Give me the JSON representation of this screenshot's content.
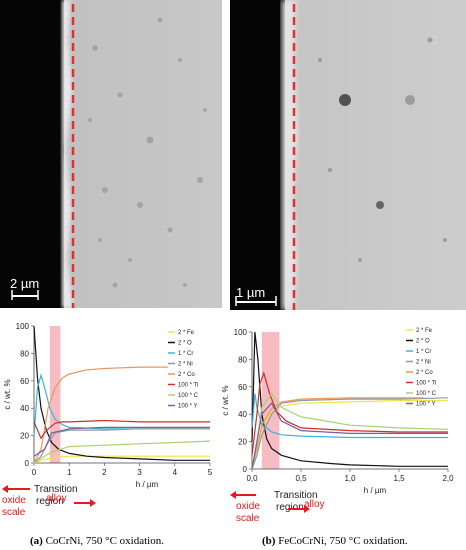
{
  "figure": {
    "panel_a": {
      "caption_letter": "(a)",
      "caption_text": "CoCrNi, 750 °C oxidation.",
      "scale_bar_label": "2 µm"
    },
    "panel_b": {
      "caption_letter": "(b)",
      "caption_text": "FeCoCrNi, 750 °C oxidation.",
      "scale_bar_label": "1 µm"
    }
  },
  "chart_data": [
    {
      "type": "line",
      "panel": "a",
      "ylabel": "c / wt. %",
      "xlabel": "h / µm",
      "xlim": [
        0,
        5
      ],
      "ylim": [
        0,
        100
      ],
      "x_ticks": [
        "0",
        "1",
        "2",
        "3",
        "4",
        "5"
      ],
      "y_ticks": [
        "0",
        "20",
        "40",
        "60",
        "80",
        "100"
      ],
      "grid": false,
      "legend_position": "top-right",
      "transition_region": [
        0.45,
        0.75
      ],
      "region_labels": [
        "oxide scale",
        "Transition region",
        "alloy"
      ],
      "series": [
        {
          "name": "2 * Fe",
          "color": "#f2e24a",
          "x": [
            0,
            0.2,
            0.4,
            0.6,
            1,
            1.5,
            2,
            3,
            4,
            5
          ],
          "y": [
            0,
            2,
            3,
            4,
            5,
            5,
            5,
            5,
            5,
            5
          ]
        },
        {
          "name": "2 * O",
          "color": "#111111",
          "x": [
            0,
            0.1,
            0.2,
            0.35,
            0.5,
            0.7,
            1,
            1.5,
            2,
            3,
            4,
            5
          ],
          "y": [
            100,
            62,
            40,
            24,
            15,
            10,
            7,
            5,
            4,
            3,
            2,
            2
          ]
        },
        {
          "name": "1 * Cr",
          "color": "#3ab4d8",
          "x": [
            0,
            0.1,
            0.2,
            0.3,
            0.45,
            0.6,
            0.8,
            1,
            2,
            3,
            4,
            5
          ],
          "y": [
            20,
            55,
            64,
            55,
            40,
            32,
            28,
            26,
            25,
            25,
            25,
            25
          ]
        },
        {
          "name": "2 * Ni",
          "color": "#8d9aa6",
          "x": [
            0,
            0.2,
            0.4,
            0.6,
            1,
            2,
            3,
            4,
            5
          ],
          "y": [
            0,
            5,
            15,
            22,
            24,
            24,
            25,
            25,
            25
          ]
        },
        {
          "name": "2 * Co",
          "color": "#e8965a",
          "x": [
            0,
            0.2,
            0.3,
            0.4,
            0.6,
            0.8,
            1,
            1.5,
            2,
            3,
            3.8
          ],
          "y": [
            0,
            10,
            25,
            40,
            55,
            62,
            65,
            68,
            69,
            70,
            70
          ]
        },
        {
          "name": "100 * Ti",
          "color": "#d42a2a",
          "x": [
            0,
            0.2,
            0.3,
            0.45,
            0.6,
            0.8,
            1,
            2,
            3,
            4,
            5
          ],
          "y": [
            30,
            18,
            22,
            26,
            29,
            30,
            30,
            31,
            30,
            30,
            30
          ]
        },
        {
          "name": "100 * C",
          "color": "#a8d26e",
          "x": [
            0,
            0.3,
            0.5,
            1,
            2,
            3,
            4,
            5
          ],
          "y": [
            0,
            5,
            8,
            12,
            13,
            14,
            15,
            16
          ]
        },
        {
          "name": "100 * Y",
          "color": "#7a5f9a",
          "x": [
            0,
            0.3,
            0.5,
            1,
            2,
            3,
            4,
            5
          ],
          "y": [
            5,
            10,
            22,
            25,
            26,
            26,
            26,
            26
          ]
        }
      ]
    },
    {
      "type": "line",
      "panel": "b",
      "ylabel": "c / wt. %",
      "xlabel": "h / µm",
      "xlim": [
        0,
        2
      ],
      "ylim": [
        0,
        100
      ],
      "x_ticks": [
        "0,0",
        "0,5",
        "1,0",
        "1,5",
        "2,0"
      ],
      "y_ticks": [
        "0",
        "20",
        "40",
        "60",
        "80",
        "100"
      ],
      "grid": false,
      "legend_position": "top-right",
      "transition_region": [
        0.1,
        0.28
      ],
      "region_labels": [
        "oxide scale",
        "Transition region",
        "alloy"
      ],
      "series": [
        {
          "name": "2 * Fe",
          "color": "#f2e24a",
          "x": [
            0,
            0.05,
            0.1,
            0.2,
            0.3,
            0.5,
            1,
            1.5,
            2
          ],
          "y": [
            0,
            10,
            30,
            42,
            46,
            48,
            49,
            50,
            50
          ]
        },
        {
          "name": "2 * O",
          "color": "#111111",
          "x": [
            0,
            0.03,
            0.06,
            0.1,
            0.15,
            0.2,
            0.3,
            0.5,
            0.8,
            1,
            1.5,
            2
          ],
          "y": [
            20,
            100,
            80,
            40,
            22,
            15,
            10,
            6,
            4,
            3,
            2,
            2
          ]
        },
        {
          "name": "1 * Cr",
          "color": "#3ab4d8",
          "x": [
            0,
            0.03,
            0.05,
            0.1,
            0.15,
            0.2,
            0.3,
            0.5,
            1,
            1.5,
            2
          ],
          "y": [
            30,
            55,
            45,
            32,
            30,
            27,
            25,
            24,
            23,
            23,
            23
          ]
        },
        {
          "name": "2 * Ni",
          "color": "#8d9aa6",
          "x": [
            0,
            0.05,
            0.1,
            0.2,
            0.3,
            0.5,
            1,
            1.5,
            2
          ],
          "y": [
            0,
            10,
            25,
            40,
            48,
            50,
            51,
            51,
            52
          ]
        },
        {
          "name": "2 * Co",
          "color": "#e8965a",
          "x": [
            0,
            0.05,
            0.1,
            0.2,
            0.3,
            0.5,
            1,
            1.5,
            1.75
          ],
          "y": [
            0,
            15,
            32,
            44,
            49,
            51,
            52,
            52,
            52
          ]
        },
        {
          "name": "100 * Ti",
          "color": "#d42a2a",
          "x": [
            0,
            0.05,
            0.08,
            0.12,
            0.18,
            0.25,
            0.35,
            0.5,
            1,
            1.5,
            2
          ],
          "y": [
            10,
            40,
            62,
            70,
            55,
            42,
            35,
            30,
            28,
            27,
            27
          ]
        },
        {
          "name": "100 * C",
          "color": "#a8d26e",
          "x": [
            0,
            0.05,
            0.1,
            0.2,
            0.3,
            0.5,
            1,
            1.5,
            2
          ],
          "y": [
            0,
            20,
            45,
            55,
            45,
            38,
            32,
            30,
            29
          ]
        },
        {
          "name": "100 * Y",
          "color": "#7a5f9a",
          "x": [
            0,
            0.05,
            0.1,
            0.2,
            0.3,
            0.5,
            1,
            1.5,
            2
          ],
          "y": [
            0,
            20,
            40,
            48,
            35,
            28,
            26,
            26,
            26
          ]
        }
      ]
    }
  ]
}
